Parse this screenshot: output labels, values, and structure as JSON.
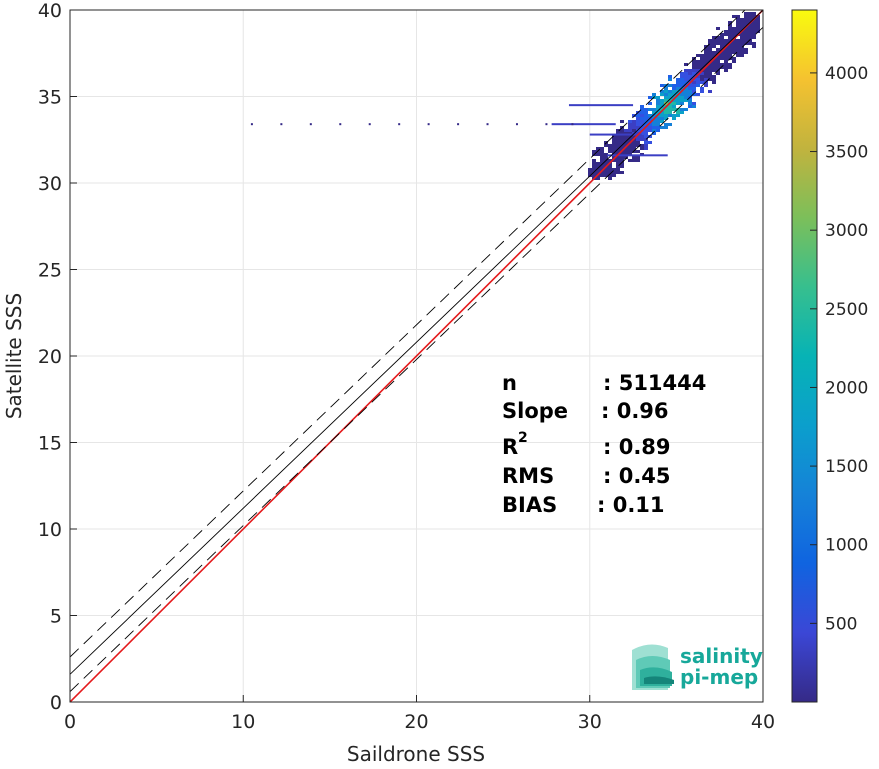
{
  "chart_data": {
    "type": "heatmap",
    "xlabel": "Saildrone SSS",
    "ylabel": "Satellite SSS",
    "xlim": [
      0,
      40
    ],
    "ylim": [
      0,
      40
    ],
    "xticks": [
      0,
      10,
      20,
      30,
      40
    ],
    "yticks": [
      0,
      5,
      10,
      15,
      20,
      25,
      30,
      35,
      40
    ],
    "grid": true,
    "lines": [
      {
        "name": "one-to-one",
        "color": "#e41a1c",
        "style": "solid",
        "slope": 1.0,
        "intercept": 0.0
      },
      {
        "name": "regression",
        "color": "#000000",
        "style": "solid",
        "slope": 0.96,
        "intercept": 1.6
      },
      {
        "name": "regression-plus",
        "color": "#000000",
        "style": "dashed",
        "slope": 0.96,
        "intercept": 2.6
      },
      {
        "name": "regression-minus",
        "color": "#000000",
        "style": "dashed",
        "slope": 0.96,
        "intercept": 0.6
      }
    ],
    "density": {
      "x_range": [
        30,
        39.5
      ],
      "y_range": [
        30.5,
        39.8
      ],
      "peak": [
        34.5,
        34.5
      ]
    },
    "outlier_points": [
      [
        10.5,
        33.4
      ],
      [
        12.2,
        33.4
      ],
      [
        13.9,
        33.4
      ],
      [
        15.6,
        33.4
      ],
      [
        17.3,
        33.4
      ],
      [
        19.0,
        33.4
      ],
      [
        20.7,
        33.4
      ],
      [
        22.4,
        33.4
      ],
      [
        24.1,
        33.4
      ],
      [
        25.8,
        33.4
      ],
      [
        27.5,
        33.4
      ],
      [
        29.0,
        33.4
      ]
    ],
    "colorbar": {
      "range": [
        0,
        4400
      ],
      "ticks": [
        500,
        1000,
        1500,
        2000,
        2500,
        3000,
        3500,
        4000
      ],
      "colormap": "parula"
    }
  },
  "stats": {
    "n_label": "n",
    "n_value": ": 511444",
    "slope_label": "Slope",
    "slope_value": ": 0.96",
    "r2_label": "R",
    "r2_sup": "2",
    "r2_value": ": 0.89",
    "rms_label": "RMS",
    "rms_value": ": 0.45",
    "bias_label": "BIAS",
    "bias_value": ": 0.11"
  },
  "logo": {
    "line1": "salinity",
    "line2": "pi-mep",
    "color": "#17a89a"
  }
}
